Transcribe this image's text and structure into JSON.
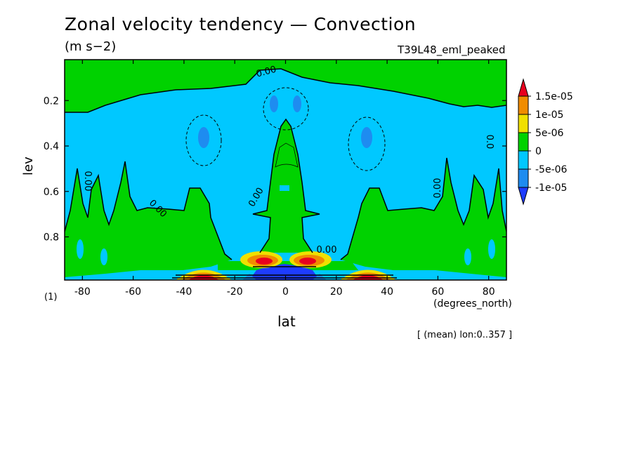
{
  "chart_data": {
    "type": "heatmap",
    "title": "Zonal velocity tendency — Convection",
    "units": "(m s−2)",
    "experiment": "T39L48_eml_peaked",
    "xlabel": "lat",
    "ylabel": "lev",
    "x_units": "(degrees_north)",
    "footnote": "[ (mean) lon:0..357 ]",
    "bottom_left_note": "(1)",
    "xlim": [
      -87,
      87
    ],
    "ylim": [
      0.99,
      0.02
    ],
    "x_ticks": [
      -80,
      -60,
      -40,
      -20,
      0,
      20,
      40,
      60,
      80
    ],
    "y_ticks": [
      0.2,
      0.4,
      0.6,
      0.8
    ],
    "contour_labels": [
      "0.00",
      "0.00",
      "0.00",
      "0.00",
      "0.00",
      "0.00",
      "0.0",
      "0.0"
    ],
    "legend": {
      "type": "colorbar",
      "placement": "right",
      "levels": [
        "1.5e-05",
        "1e-05",
        "5e-06",
        "0",
        "-5e-06",
        "-1e-05"
      ],
      "colors": [
        "#e8001e",
        "#f08c00",
        "#f0e000",
        "#00d200",
        "#00c8ff",
        "#1e8cf0",
        "#1e3cff"
      ]
    },
    "field_regions": [
      {
        "name": "upper_positive_band",
        "value_range": "0 to 5e-06",
        "color": "#00d200",
        "lev": [
          0.02,
          0.15
        ],
        "lat": [
          -87,
          87
        ]
      },
      {
        "name": "equatorial_positive_tower",
        "value_range": "0 to 5e-06",
        "color": "#00d200",
        "lev": [
          0.27,
          0.85
        ],
        "lat": [
          -10,
          10
        ]
      },
      {
        "name": "midlevel_negative",
        "value_range": "-5e-06 to 0",
        "color": "#00c8ff",
        "lev": [
          0.15,
          0.85
        ],
        "lat": [
          -87,
          87
        ]
      },
      {
        "name": "upper_negative_core_south",
        "value_range": "-1e-05 to -5e-06",
        "color": "#1e8cf0",
        "lev": [
          0.33,
          0.38
        ],
        "lat": [
          -33,
          -31
        ]
      },
      {
        "name": "upper_negative_core_north",
        "value_range": "-1e-05 to -5e-06",
        "color": "#1e8cf0",
        "lev": [
          0.33,
          0.38
        ],
        "lat": [
          31,
          33
        ]
      },
      {
        "name": "lower_positive_peaks_subtropics",
        "value_range": "> 1.5e-05",
        "color": "#e8001e",
        "lev": [
          0.96,
          0.99
        ],
        "lat": [
          -37,
          -28
        ]
      },
      {
        "name": "lower_positive_peaks_subtropics_n",
        "value_range": "> 1.5e-05",
        "color": "#e8001e",
        "lev": [
          0.96,
          0.99
        ],
        "lat": [
          28,
          37
        ]
      },
      {
        "name": "lower_positive_peaks_equatorial",
        "value_range": "> 1.5e-05",
        "color": "#e8001e",
        "lev": [
          0.89,
          0.92
        ],
        "lat": [
          -8,
          8
        ]
      },
      {
        "name": "surface_negative_equatorial",
        "value_range": "< -1e-05",
        "color": "#1e3cff",
        "lev": [
          0.93,
          0.99
        ],
        "lat": [
          -10,
          10
        ]
      }
    ]
  }
}
